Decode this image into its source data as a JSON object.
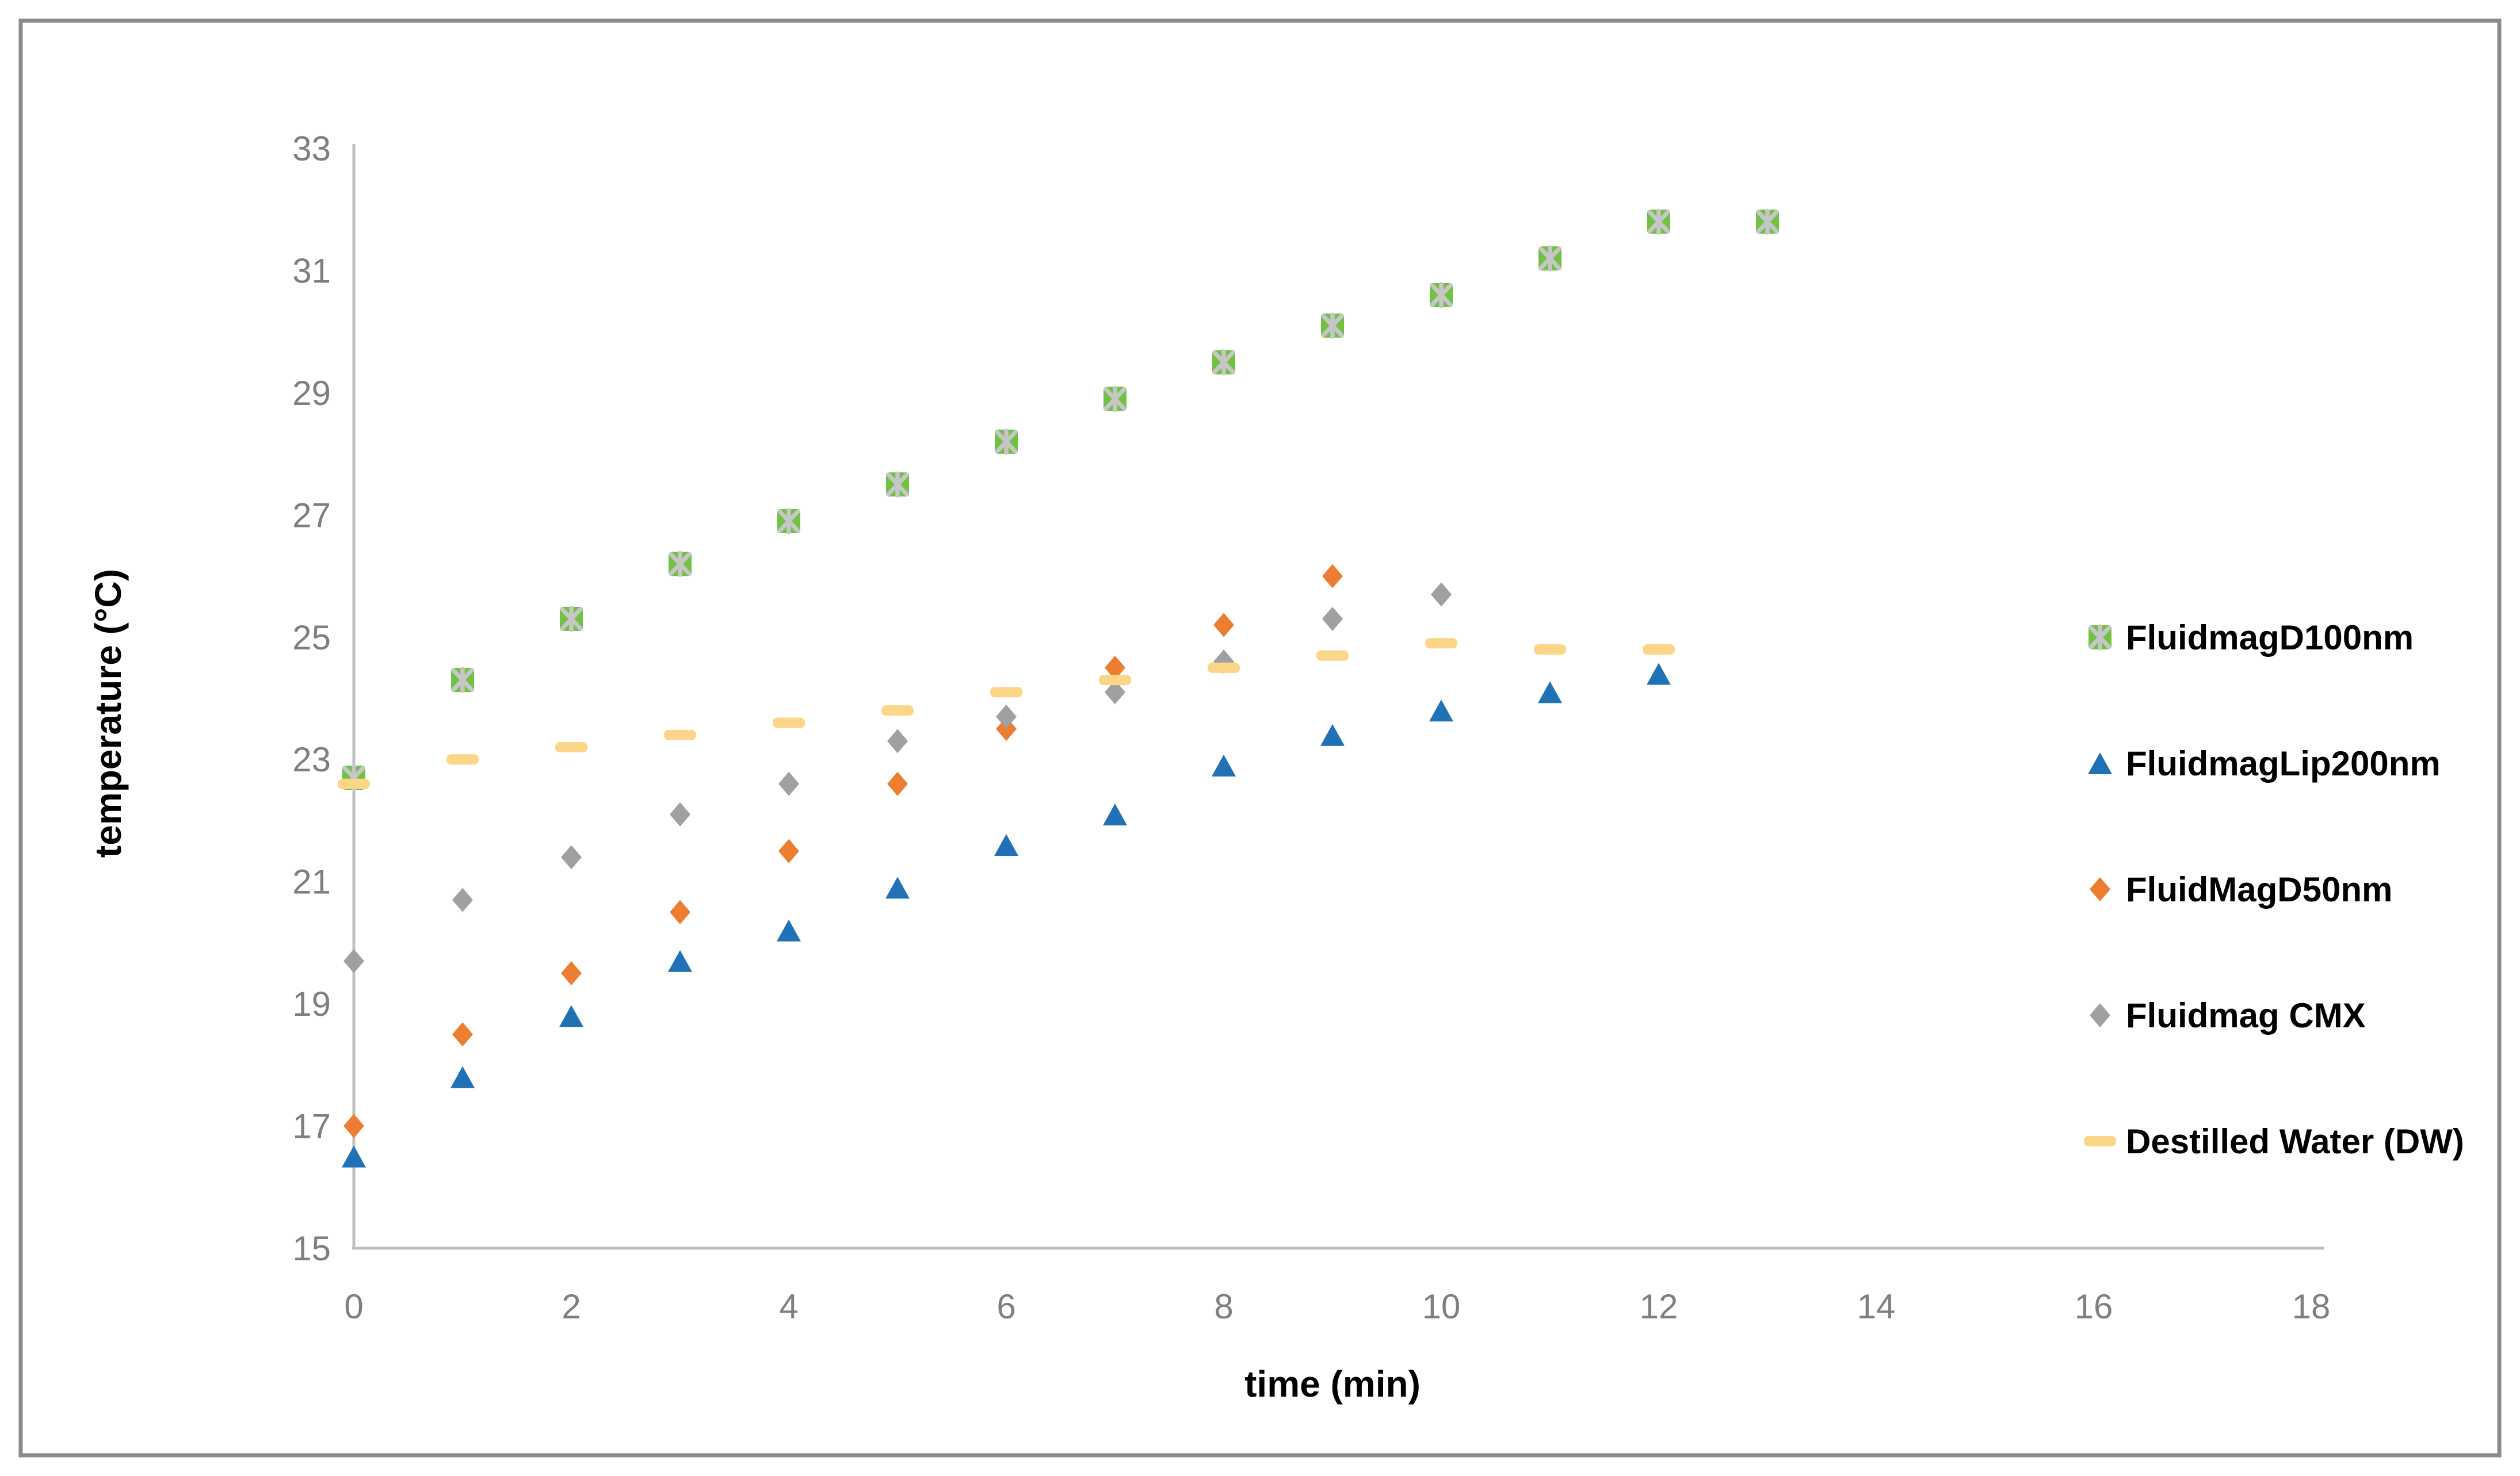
{
  "figure": {
    "background": "#ffffff",
    "border_color": "#8a8a8a",
    "axis_line_color": "#bfbfbf",
    "tick_label_color": "#7f7f7f"
  },
  "chart_data": {
    "type": "scatter",
    "title": "",
    "xlabel": "time (min)",
    "ylabel": "temperature (°C)",
    "xlim": [
      0,
      18
    ],
    "ylim": [
      15,
      33
    ],
    "xticks": [
      0,
      2,
      4,
      6,
      8,
      10,
      12,
      14,
      16,
      18
    ],
    "yticks": [
      15,
      17,
      19,
      21,
      23,
      25,
      27,
      29,
      31,
      33
    ],
    "grid": false,
    "legend_position": "right",
    "series": [
      {
        "name": "FluidmagD100nm",
        "marker": "x-square",
        "color": "#70c144",
        "marker_detail": "#c6c6c6",
        "x": [
          0,
          1,
          2,
          3,
          4,
          5,
          6,
          7,
          8,
          9,
          10,
          11,
          12,
          13
        ],
        "values": [
          22.7,
          24.3,
          25.3,
          26.2,
          26.9,
          27.5,
          28.2,
          28.9,
          29.5,
          30.1,
          30.6,
          31.2,
          31.8,
          31.8
        ]
      },
      {
        "name": "FluidmagLip200nm",
        "marker": "triangle",
        "color": "#2071b5",
        "x": [
          0,
          1,
          2,
          3,
          4,
          5,
          6,
          7,
          8,
          9,
          10,
          11,
          12
        ],
        "values": [
          16.5,
          17.8,
          18.8,
          19.7,
          20.2,
          20.9,
          21.6,
          22.1,
          22.9,
          23.4,
          23.8,
          24.1,
          24.4
        ]
      },
      {
        "name": "FluidMagD50nm",
        "marker": "diamond",
        "color": "#ed7d31",
        "x": [
          0,
          1,
          2,
          3,
          4,
          5,
          6,
          7,
          8,
          9
        ],
        "values": [
          17.0,
          18.5,
          19.5,
          20.5,
          21.5,
          22.6,
          23.5,
          24.5,
          25.2,
          26.0
        ]
      },
      {
        "name": "Fluidmag CMX",
        "marker": "diamond",
        "color": "#a0a0a0",
        "x": [
          0,
          1,
          2,
          3,
          4,
          5,
          6,
          7,
          8,
          9,
          10
        ],
        "values": [
          19.7,
          20.7,
          21.4,
          22.1,
          22.6,
          23.3,
          23.7,
          24.1,
          24.6,
          25.3,
          25.7
        ]
      },
      {
        "name": "Destilled Water (DW)",
        "marker": "dash",
        "color": "#fbd689",
        "x": [
          0,
          1,
          2,
          3,
          4,
          5,
          6,
          7,
          8,
          9,
          10,
          11,
          12
        ],
        "values": [
          22.6,
          23.0,
          23.2,
          23.4,
          23.6,
          23.8,
          24.1,
          24.3,
          24.5,
          24.7,
          24.9,
          24.8,
          24.8
        ]
      }
    ]
  }
}
